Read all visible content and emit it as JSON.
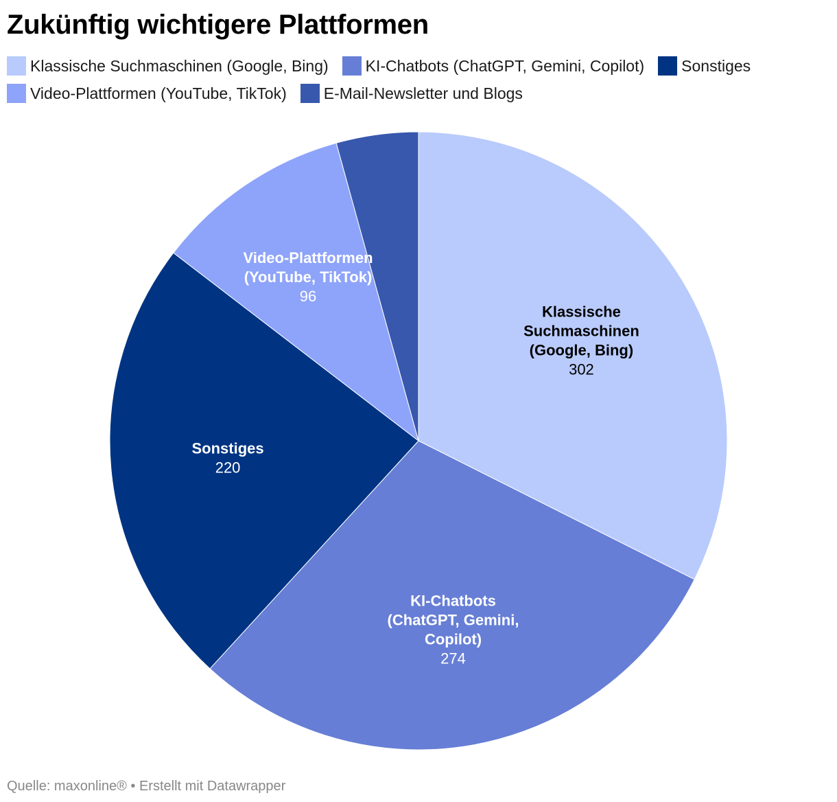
{
  "header": {
    "title": "Zukünftig wichtigere Plattformen"
  },
  "legend": {
    "items": [
      {
        "label": "Klassische Suchmaschinen (Google, Bing)",
        "color": "#b9cbfc"
      },
      {
        "label": "KI-Chatbots (ChatGPT, Gemini, Copilot)",
        "color": "#667ed5"
      },
      {
        "label": "Sonstiges",
        "color": "#003482"
      },
      {
        "label": "Video-Plattformen (YouTube, TikTok)",
        "color": "#8ea4fa"
      },
      {
        "label": "E-Mail-Newsletter und Blogs",
        "color": "#3858ad"
      }
    ]
  },
  "chart_data": {
    "type": "pie",
    "title": "Zukünftig wichtigere Plattformen",
    "start_angle_deg": 0,
    "direction": "clockwise",
    "slices": [
      {
        "label": "Klassische Suchmaschinen (Google, Bing)",
        "label_lines": [
          "Klassische",
          "Suchmaschinen",
          "(Google, Bing)"
        ],
        "value": 302,
        "value_label": "302",
        "color": "#b9cbfc",
        "text_color": "#000000"
      },
      {
        "label": "KI-Chatbots (ChatGPT, Gemini, Copilot)",
        "label_lines": [
          "KI-Chatbots",
          "(ChatGPT, Gemini,",
          "Copilot)"
        ],
        "value": 274,
        "value_label": "274",
        "color": "#667ed5",
        "text_color": "#ffffff"
      },
      {
        "label": "Sonstiges",
        "label_lines": [
          "Sonstiges"
        ],
        "value": 220,
        "value_label": "220",
        "color": "#003482",
        "text_color": "#ffffff"
      },
      {
        "label": "Video-Plattformen (YouTube, TikTok)",
        "label_lines": [
          "Video-Plattformen",
          "(YouTube, TikTok)"
        ],
        "value": 96,
        "value_label": "96",
        "color": "#8ea4fa",
        "text_color": "#ffffff"
      },
      {
        "label": "E-Mail-Newsletter und Blogs",
        "label_lines": [],
        "value": 40,
        "value_label": "",
        "color": "#3858ad",
        "text_color": "#ffffff"
      }
    ]
  },
  "footer": {
    "source": "Quelle: maxonline® • Erstellt mit Datawrapper"
  }
}
